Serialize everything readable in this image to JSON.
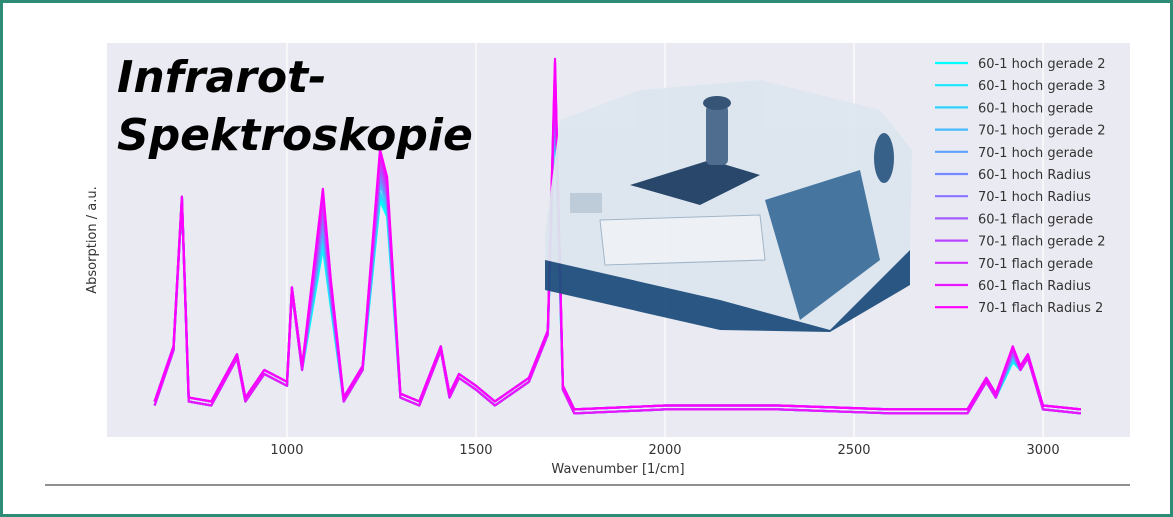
{
  "chart_data": {
    "type": "line",
    "title_lines": [
      "Infrarot-",
      "Spektroskopie"
    ],
    "x_label": "Wavenumber [1/cm]",
    "y_label": "Absorption / a.u.",
    "xlim": [
      524,
      3230
    ],
    "ylim": [
      0,
      1
    ],
    "xticks": [
      1000,
      1500,
      2000,
      2500,
      3000
    ],
    "grid": true,
    "legend": "upper right",
    "x": [
      650,
      700,
      722,
      740,
      800,
      868,
      890,
      940,
      1000,
      1013,
      1040,
      1095,
      1116,
      1150,
      1200,
      1246,
      1265,
      1300,
      1350,
      1407,
      1430,
      1455,
      1500,
      1550,
      1640,
      1690,
      1709,
      1730,
      1760,
      2000,
      2300,
      2600,
      2800,
      2850,
      2875,
      2920,
      2940,
      2960,
      3000,
      3100
    ],
    "series": [
      {
        "name": "60-1 hoch gerade 2",
        "color": "#00ffff",
        "values": [
          0.08,
          0.22,
          0.6,
          0.09,
          0.08,
          0.2,
          0.09,
          0.16,
          0.13,
          0.37,
          0.17,
          0.48,
          0.33,
          0.09,
          0.17,
          0.6,
          0.56,
          0.1,
          0.08,
          0.22,
          0.1,
          0.15,
          0.12,
          0.08,
          0.14,
          0.26,
          0.82,
          0.12,
          0.06,
          0.07,
          0.07,
          0.06,
          0.06,
          0.14,
          0.1,
          0.19,
          0.17,
          0.2,
          0.07,
          0.06
        ]
      },
      {
        "name": "60-1 hoch gerade 3",
        "color": "#17e8ff",
        "values": [
          0.09,
          0.23,
          0.61,
          0.1,
          0.09,
          0.21,
          0.1,
          0.17,
          0.14,
          0.38,
          0.18,
          0.49,
          0.34,
          0.1,
          0.18,
          0.61,
          0.57,
          0.11,
          0.09,
          0.23,
          0.11,
          0.16,
          0.13,
          0.09,
          0.15,
          0.27,
          0.83,
          0.13,
          0.07,
          0.08,
          0.08,
          0.07,
          0.07,
          0.15,
          0.11,
          0.19,
          0.18,
          0.21,
          0.08,
          0.07
        ]
      },
      {
        "name": "60-1 hoch gerade",
        "color": "#2ed1ff",
        "values": [
          0.08,
          0.22,
          0.6,
          0.09,
          0.08,
          0.2,
          0.09,
          0.16,
          0.13,
          0.37,
          0.17,
          0.51,
          0.34,
          0.09,
          0.17,
          0.62,
          0.58,
          0.1,
          0.08,
          0.22,
          0.1,
          0.15,
          0.12,
          0.08,
          0.14,
          0.26,
          0.85,
          0.12,
          0.06,
          0.07,
          0.07,
          0.06,
          0.06,
          0.14,
          0.1,
          0.2,
          0.17,
          0.2,
          0.07,
          0.06
        ]
      },
      {
        "name": "70-1 hoch gerade 2",
        "color": "#46b9ff",
        "values": [
          0.09,
          0.23,
          0.61,
          0.1,
          0.09,
          0.21,
          0.1,
          0.17,
          0.14,
          0.38,
          0.18,
          0.52,
          0.35,
          0.1,
          0.18,
          0.64,
          0.59,
          0.11,
          0.09,
          0.23,
          0.11,
          0.16,
          0.13,
          0.09,
          0.15,
          0.27,
          0.86,
          0.13,
          0.07,
          0.08,
          0.08,
          0.07,
          0.07,
          0.15,
          0.11,
          0.2,
          0.18,
          0.21,
          0.08,
          0.07
        ]
      },
      {
        "name": "70-1 hoch gerade",
        "color": "#5da2ff",
        "values": [
          0.08,
          0.22,
          0.6,
          0.09,
          0.08,
          0.2,
          0.09,
          0.16,
          0.13,
          0.37,
          0.17,
          0.53,
          0.36,
          0.09,
          0.17,
          0.65,
          0.6,
          0.1,
          0.08,
          0.22,
          0.1,
          0.15,
          0.12,
          0.08,
          0.14,
          0.26,
          0.87,
          0.12,
          0.06,
          0.07,
          0.07,
          0.06,
          0.06,
          0.14,
          0.1,
          0.21,
          0.17,
          0.2,
          0.07,
          0.06
        ]
      },
      {
        "name": "60-1 hoch Radius",
        "color": "#748bff",
        "values": [
          0.09,
          0.23,
          0.61,
          0.1,
          0.09,
          0.21,
          0.1,
          0.17,
          0.14,
          0.38,
          0.18,
          0.55,
          0.36,
          0.1,
          0.18,
          0.66,
          0.61,
          0.11,
          0.09,
          0.23,
          0.11,
          0.16,
          0.13,
          0.09,
          0.15,
          0.27,
          0.88,
          0.13,
          0.07,
          0.08,
          0.08,
          0.07,
          0.07,
          0.15,
          0.11,
          0.21,
          0.18,
          0.21,
          0.08,
          0.07
        ]
      },
      {
        "name": "70-1 hoch Radius",
        "color": "#8b74ff",
        "values": [
          0.08,
          0.22,
          0.6,
          0.09,
          0.08,
          0.2,
          0.09,
          0.16,
          0.13,
          0.37,
          0.17,
          0.56,
          0.37,
          0.09,
          0.17,
          0.67,
          0.61,
          0.1,
          0.08,
          0.22,
          0.1,
          0.15,
          0.12,
          0.08,
          0.14,
          0.26,
          0.9,
          0.12,
          0.06,
          0.07,
          0.07,
          0.06,
          0.06,
          0.14,
          0.1,
          0.21,
          0.17,
          0.2,
          0.07,
          0.06
        ]
      },
      {
        "name": "60-1 flach gerade",
        "color": "#a25dff",
        "values": [
          0.09,
          0.23,
          0.61,
          0.1,
          0.09,
          0.21,
          0.1,
          0.17,
          0.14,
          0.38,
          0.18,
          0.58,
          0.37,
          0.1,
          0.18,
          0.68,
          0.62,
          0.11,
          0.09,
          0.23,
          0.11,
          0.16,
          0.13,
          0.09,
          0.15,
          0.27,
          0.91,
          0.13,
          0.07,
          0.08,
          0.08,
          0.07,
          0.07,
          0.15,
          0.11,
          0.22,
          0.18,
          0.21,
          0.08,
          0.07
        ]
      },
      {
        "name": "70-1 flach gerade 2",
        "color": "#b946ff",
        "values": [
          0.08,
          0.22,
          0.6,
          0.09,
          0.08,
          0.2,
          0.09,
          0.16,
          0.13,
          0.37,
          0.17,
          0.59,
          0.38,
          0.09,
          0.17,
          0.69,
          0.63,
          0.1,
          0.08,
          0.22,
          0.1,
          0.15,
          0.12,
          0.08,
          0.14,
          0.26,
          0.92,
          0.12,
          0.06,
          0.07,
          0.07,
          0.06,
          0.06,
          0.14,
          0.1,
          0.22,
          0.17,
          0.2,
          0.07,
          0.06
        ]
      },
      {
        "name": "70-1 flach gerade",
        "color": "#d12eff",
        "values": [
          0.09,
          0.23,
          0.61,
          0.1,
          0.09,
          0.21,
          0.1,
          0.17,
          0.14,
          0.38,
          0.18,
          0.6,
          0.39,
          0.1,
          0.18,
          0.71,
          0.64,
          0.11,
          0.09,
          0.23,
          0.11,
          0.16,
          0.13,
          0.09,
          0.15,
          0.27,
          0.93,
          0.13,
          0.07,
          0.08,
          0.08,
          0.07,
          0.07,
          0.15,
          0.11,
          0.22,
          0.18,
          0.21,
          0.08,
          0.07
        ]
      },
      {
        "name": "60-1 flach Radius",
        "color": "#e817ff",
        "values": [
          0.08,
          0.22,
          0.6,
          0.09,
          0.08,
          0.2,
          0.09,
          0.16,
          0.13,
          0.37,
          0.17,
          0.62,
          0.39,
          0.09,
          0.17,
          0.72,
          0.65,
          0.1,
          0.08,
          0.22,
          0.1,
          0.15,
          0.12,
          0.08,
          0.14,
          0.26,
          0.95,
          0.12,
          0.06,
          0.07,
          0.07,
          0.06,
          0.06,
          0.14,
          0.1,
          0.23,
          0.17,
          0.2,
          0.07,
          0.06
        ]
      },
      {
        "name": "70-1 flach Radius 2",
        "color": "#ff00ff",
        "values": [
          0.09,
          0.23,
          0.61,
          0.1,
          0.09,
          0.21,
          0.1,
          0.17,
          0.14,
          0.38,
          0.18,
          0.63,
          0.4,
          0.1,
          0.18,
          0.73,
          0.66,
          0.11,
          0.09,
          0.23,
          0.11,
          0.16,
          0.13,
          0.09,
          0.15,
          0.27,
          0.96,
          0.13,
          0.07,
          0.08,
          0.08,
          0.07,
          0.07,
          0.15,
          0.11,
          0.23,
          0.18,
          0.21,
          0.08,
          0.07
        ]
      }
    ]
  }
}
